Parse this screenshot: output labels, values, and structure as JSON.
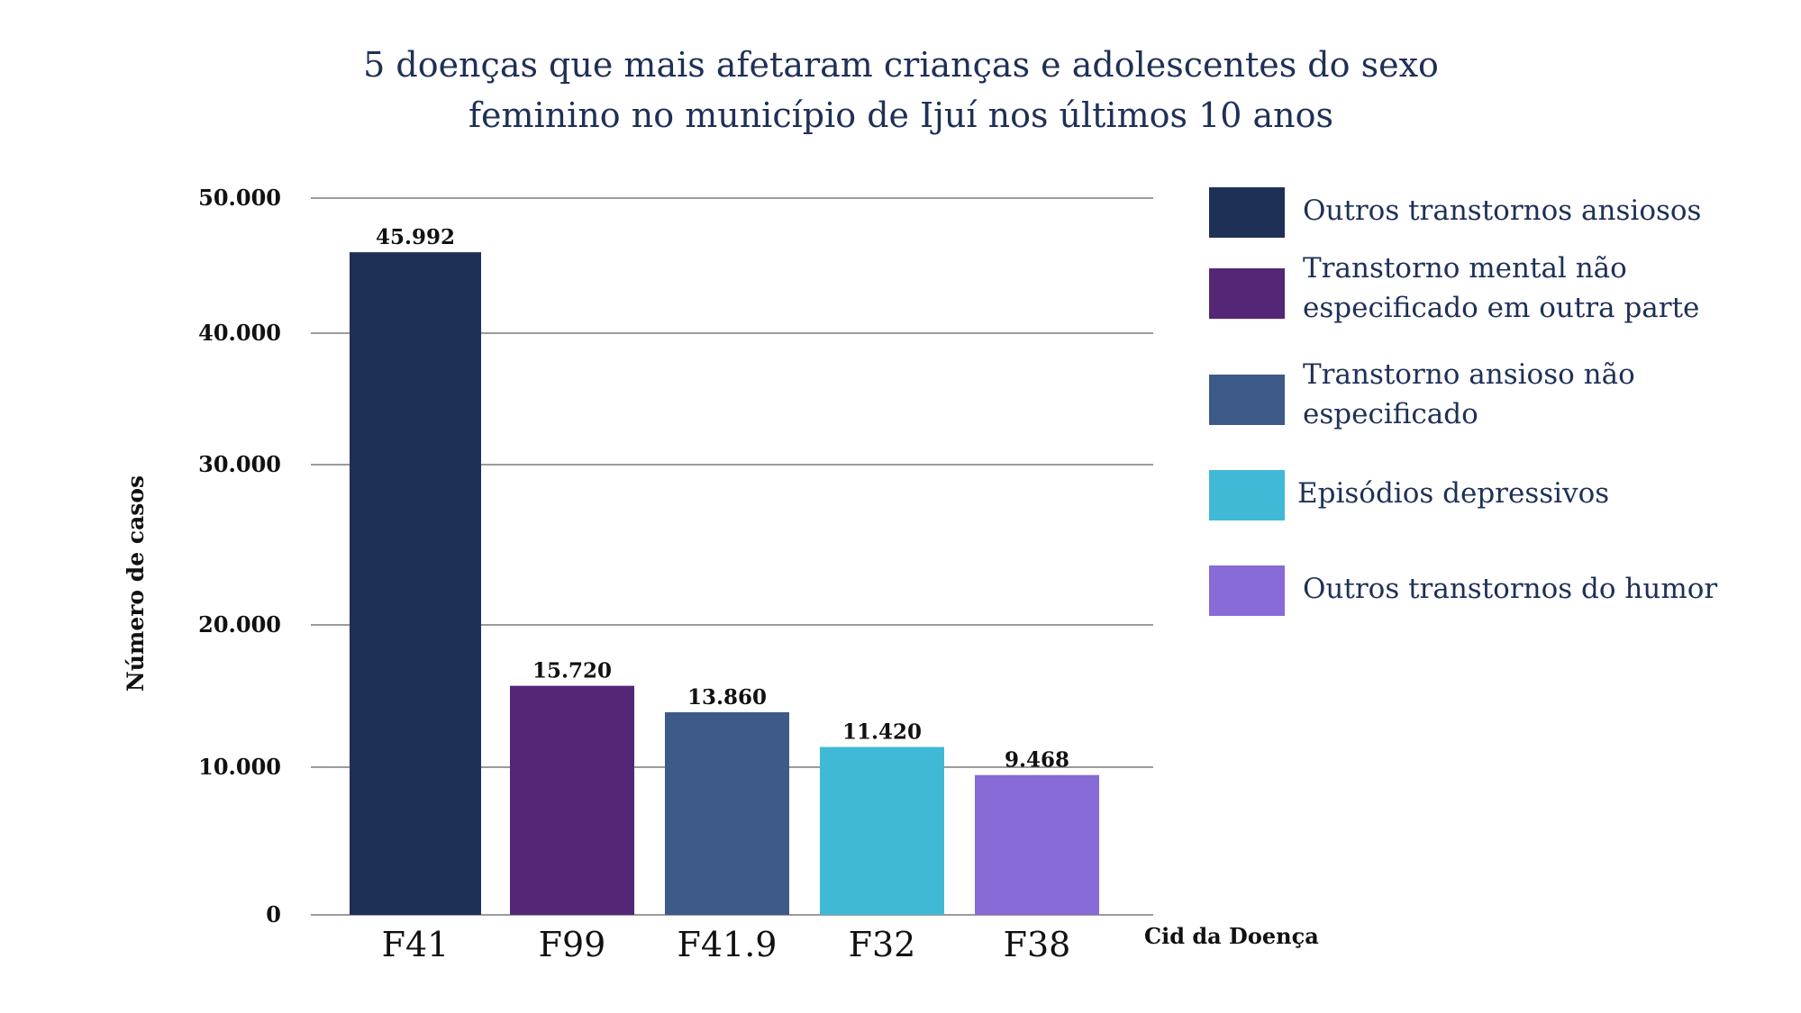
{
  "chart_data": {
    "type": "bar",
    "title": "5 doenças que mais afetaram  crianças e adolescentes do sexo\nfeminino no município de Ijuí nos últimos 10 anos",
    "xlabel": "Cid da Doença",
    "ylabel": "Número de casos",
    "categories": [
      "F41",
      "F99",
      "F41.9",
      "F32",
      "F38"
    ],
    "values": [
      45992,
      15720,
      13860,
      11420,
      9468
    ],
    "value_labels": [
      "45.992",
      "15.720",
      "13.860",
      "11.420",
      "9.468"
    ],
    "colors": [
      "#1f3057",
      "#542676",
      "#3e5a88",
      "#40b9d6",
      "#876bd6"
    ],
    "ylim": [
      0,
      50000
    ],
    "yticks": [
      0,
      10000,
      20000,
      30000,
      40000,
      50000
    ],
    "ytick_labels": [
      "0",
      "10.000",
      "20.000",
      "30.000",
      "40.000",
      "50.000"
    ],
    "grid": true,
    "legend_position": "right",
    "legend": [
      "Outros transtornos ansiosos",
      "Transtorno mental não especificado em outra parte",
      "Transtorno ansioso não especificado",
      "Episódios depressivos",
      "Outros transtornos do humor"
    ]
  }
}
